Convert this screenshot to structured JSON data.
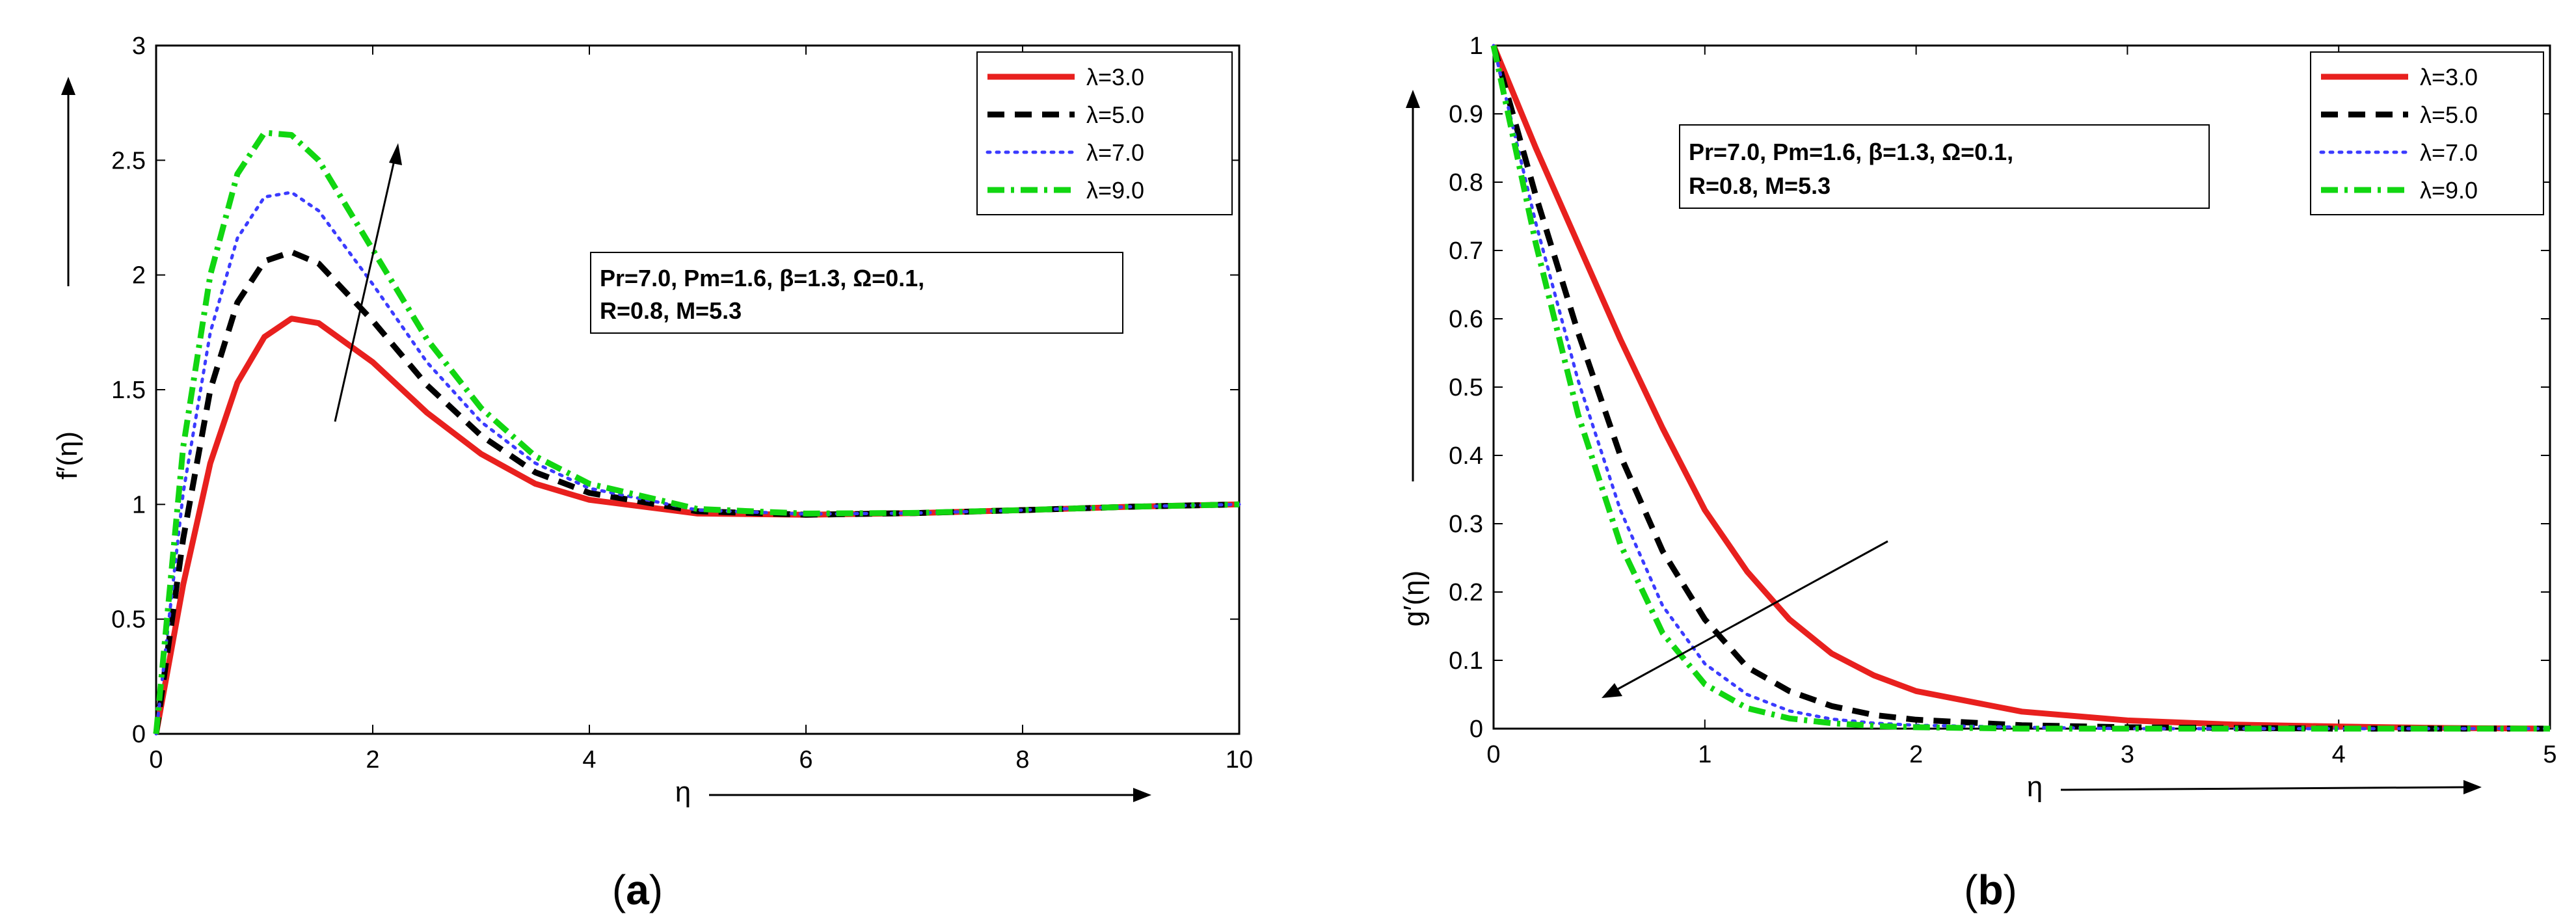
{
  "chart_data": [
    {
      "type": "line",
      "panel": "a",
      "panel_label": "a",
      "ylabel": "f′(η)",
      "xlabel": "η",
      "xlim": [
        0,
        10
      ],
      "ylim": [
        0,
        3
      ],
      "xticks": [
        "0",
        "2",
        "4",
        "6",
        "8",
        "10"
      ],
      "yticks": [
        "0",
        "0.5",
        "1",
        "1.5",
        "2",
        "2.5",
        "3"
      ],
      "annotation_lines": [
        "Pr=7.0, Pm=1.6, β=1.3, Ω=0.1,",
        "R=0.8, M=5.3"
      ],
      "trend_arrow": "increasing",
      "legend_position": "top-right",
      "series": [
        {
          "name": "λ=3.0",
          "color": "#e8201e",
          "style": "solid",
          "x": [
            0,
            0.25,
            0.5,
            0.75,
            1.0,
            1.25,
            1.5,
            2.0,
            2.5,
            3.0,
            3.5,
            4.0,
            5.0,
            6.0,
            7.0,
            8.0,
            9.0,
            10.0
          ],
          "y": [
            0,
            0.65,
            1.18,
            1.53,
            1.73,
            1.81,
            1.79,
            1.62,
            1.4,
            1.22,
            1.09,
            1.02,
            0.96,
            0.955,
            0.962,
            0.975,
            0.99,
            1.0
          ]
        },
        {
          "name": "λ=5.0",
          "color": "#000000",
          "style": "dashed",
          "x": [
            0,
            0.25,
            0.5,
            0.75,
            1.0,
            1.25,
            1.5,
            2.0,
            2.5,
            3.0,
            3.5,
            4.0,
            5.0,
            6.0,
            7.0,
            8.0,
            9.0,
            10.0
          ],
          "y": [
            0,
            0.85,
            1.5,
            1.88,
            2.06,
            2.1,
            2.05,
            1.8,
            1.52,
            1.3,
            1.14,
            1.05,
            0.97,
            0.955,
            0.962,
            0.975,
            0.99,
            1.0
          ]
        },
        {
          "name": "λ=7.0",
          "color": "#3b3bff",
          "style": "dotted",
          "x": [
            0,
            0.25,
            0.5,
            0.75,
            1.0,
            1.25,
            1.5,
            2.0,
            2.5,
            3.0,
            3.5,
            4.0,
            5.0,
            6.0,
            7.0,
            8.0,
            9.0,
            10.0
          ],
          "y": [
            0,
            1.05,
            1.75,
            2.16,
            2.34,
            2.36,
            2.28,
            1.96,
            1.62,
            1.36,
            1.18,
            1.07,
            0.975,
            0.958,
            0.962,
            0.975,
            0.99,
            1.0
          ]
        },
        {
          "name": "λ=9.0",
          "color": "#11d611",
          "style": "dashdot",
          "x": [
            0,
            0.25,
            0.5,
            0.75,
            1.0,
            1.25,
            1.5,
            2.0,
            2.5,
            3.0,
            3.5,
            4.0,
            5.0,
            6.0,
            7.0,
            8.0,
            9.0,
            10.0
          ],
          "y": [
            0,
            1.25,
            2.0,
            2.44,
            2.62,
            2.61,
            2.5,
            2.11,
            1.72,
            1.42,
            1.21,
            1.09,
            0.98,
            0.96,
            0.963,
            0.975,
            0.99,
            1.0
          ]
        }
      ]
    },
    {
      "type": "line",
      "panel": "b",
      "panel_label": "b",
      "ylabel": "g′(η)",
      "xlabel": "η",
      "xlim": [
        0,
        5
      ],
      "ylim": [
        0,
        1
      ],
      "xticks": [
        "0",
        "1",
        "2",
        "3",
        "4",
        "5"
      ],
      "yticks": [
        "0",
        "0.1",
        "0.2",
        "0.3",
        "0.4",
        "0.5",
        "0.6",
        "0.7",
        "0.8",
        "0.9",
        "1"
      ],
      "annotation_lines": [
        "Pr=7.0, Pm=1.6, β=1.3, Ω=0.1,",
        "R=0.8, M=5.3"
      ],
      "trend_arrow": "decreasing",
      "legend_position": "top-right",
      "series": [
        {
          "name": "λ=3.0",
          "color": "#e8201e",
          "style": "solid",
          "x": [
            0,
            0.2,
            0.4,
            0.6,
            0.8,
            1.0,
            1.2,
            1.4,
            1.6,
            1.8,
            2.0,
            2.5,
            3.0,
            3.5,
            4.0,
            4.5,
            5.0
          ],
          "y": [
            1.0,
            0.85,
            0.71,
            0.57,
            0.44,
            0.32,
            0.23,
            0.16,
            0.11,
            0.078,
            0.055,
            0.025,
            0.012,
            0.006,
            0.003,
            0.001,
            0.0
          ]
        },
        {
          "name": "λ=5.0",
          "color": "#000000",
          "style": "dashed",
          "x": [
            0,
            0.2,
            0.4,
            0.6,
            0.8,
            1.0,
            1.2,
            1.4,
            1.6,
            1.8,
            2.0,
            2.5,
            3.0,
            3.5,
            4.0,
            4.5,
            5.0
          ],
          "y": [
            1.0,
            0.78,
            0.58,
            0.4,
            0.26,
            0.16,
            0.09,
            0.055,
            0.033,
            0.02,
            0.013,
            0.005,
            0.002,
            0.001,
            0.0,
            0.0,
            0.0
          ]
        },
        {
          "name": "λ=7.0",
          "color": "#3b3bff",
          "style": "dotted",
          "x": [
            0,
            0.2,
            0.4,
            0.6,
            0.8,
            1.0,
            1.2,
            1.4,
            1.6,
            1.8,
            2.0,
            2.5,
            3.0,
            3.5,
            4.0,
            4.5,
            5.0
          ],
          "y": [
            1.0,
            0.74,
            0.51,
            0.32,
            0.18,
            0.095,
            0.05,
            0.026,
            0.014,
            0.008,
            0.005,
            0.002,
            0.0,
            0.0,
            0.0,
            0.0,
            0.0
          ]
        },
        {
          "name": "λ=9.0",
          "color": "#11d611",
          "style": "dashdot",
          "x": [
            0,
            0.2,
            0.4,
            0.6,
            0.8,
            1.0,
            1.2,
            1.4,
            1.6,
            1.8,
            2.0,
            2.5,
            3.0,
            3.5,
            4.0,
            4.5,
            5.0
          ],
          "y": [
            1.0,
            0.71,
            0.46,
            0.27,
            0.14,
            0.065,
            0.03,
            0.015,
            0.008,
            0.004,
            0.002,
            0.0,
            0.0,
            0.0,
            0.0,
            0.0,
            0.0
          ]
        }
      ]
    }
  ]
}
